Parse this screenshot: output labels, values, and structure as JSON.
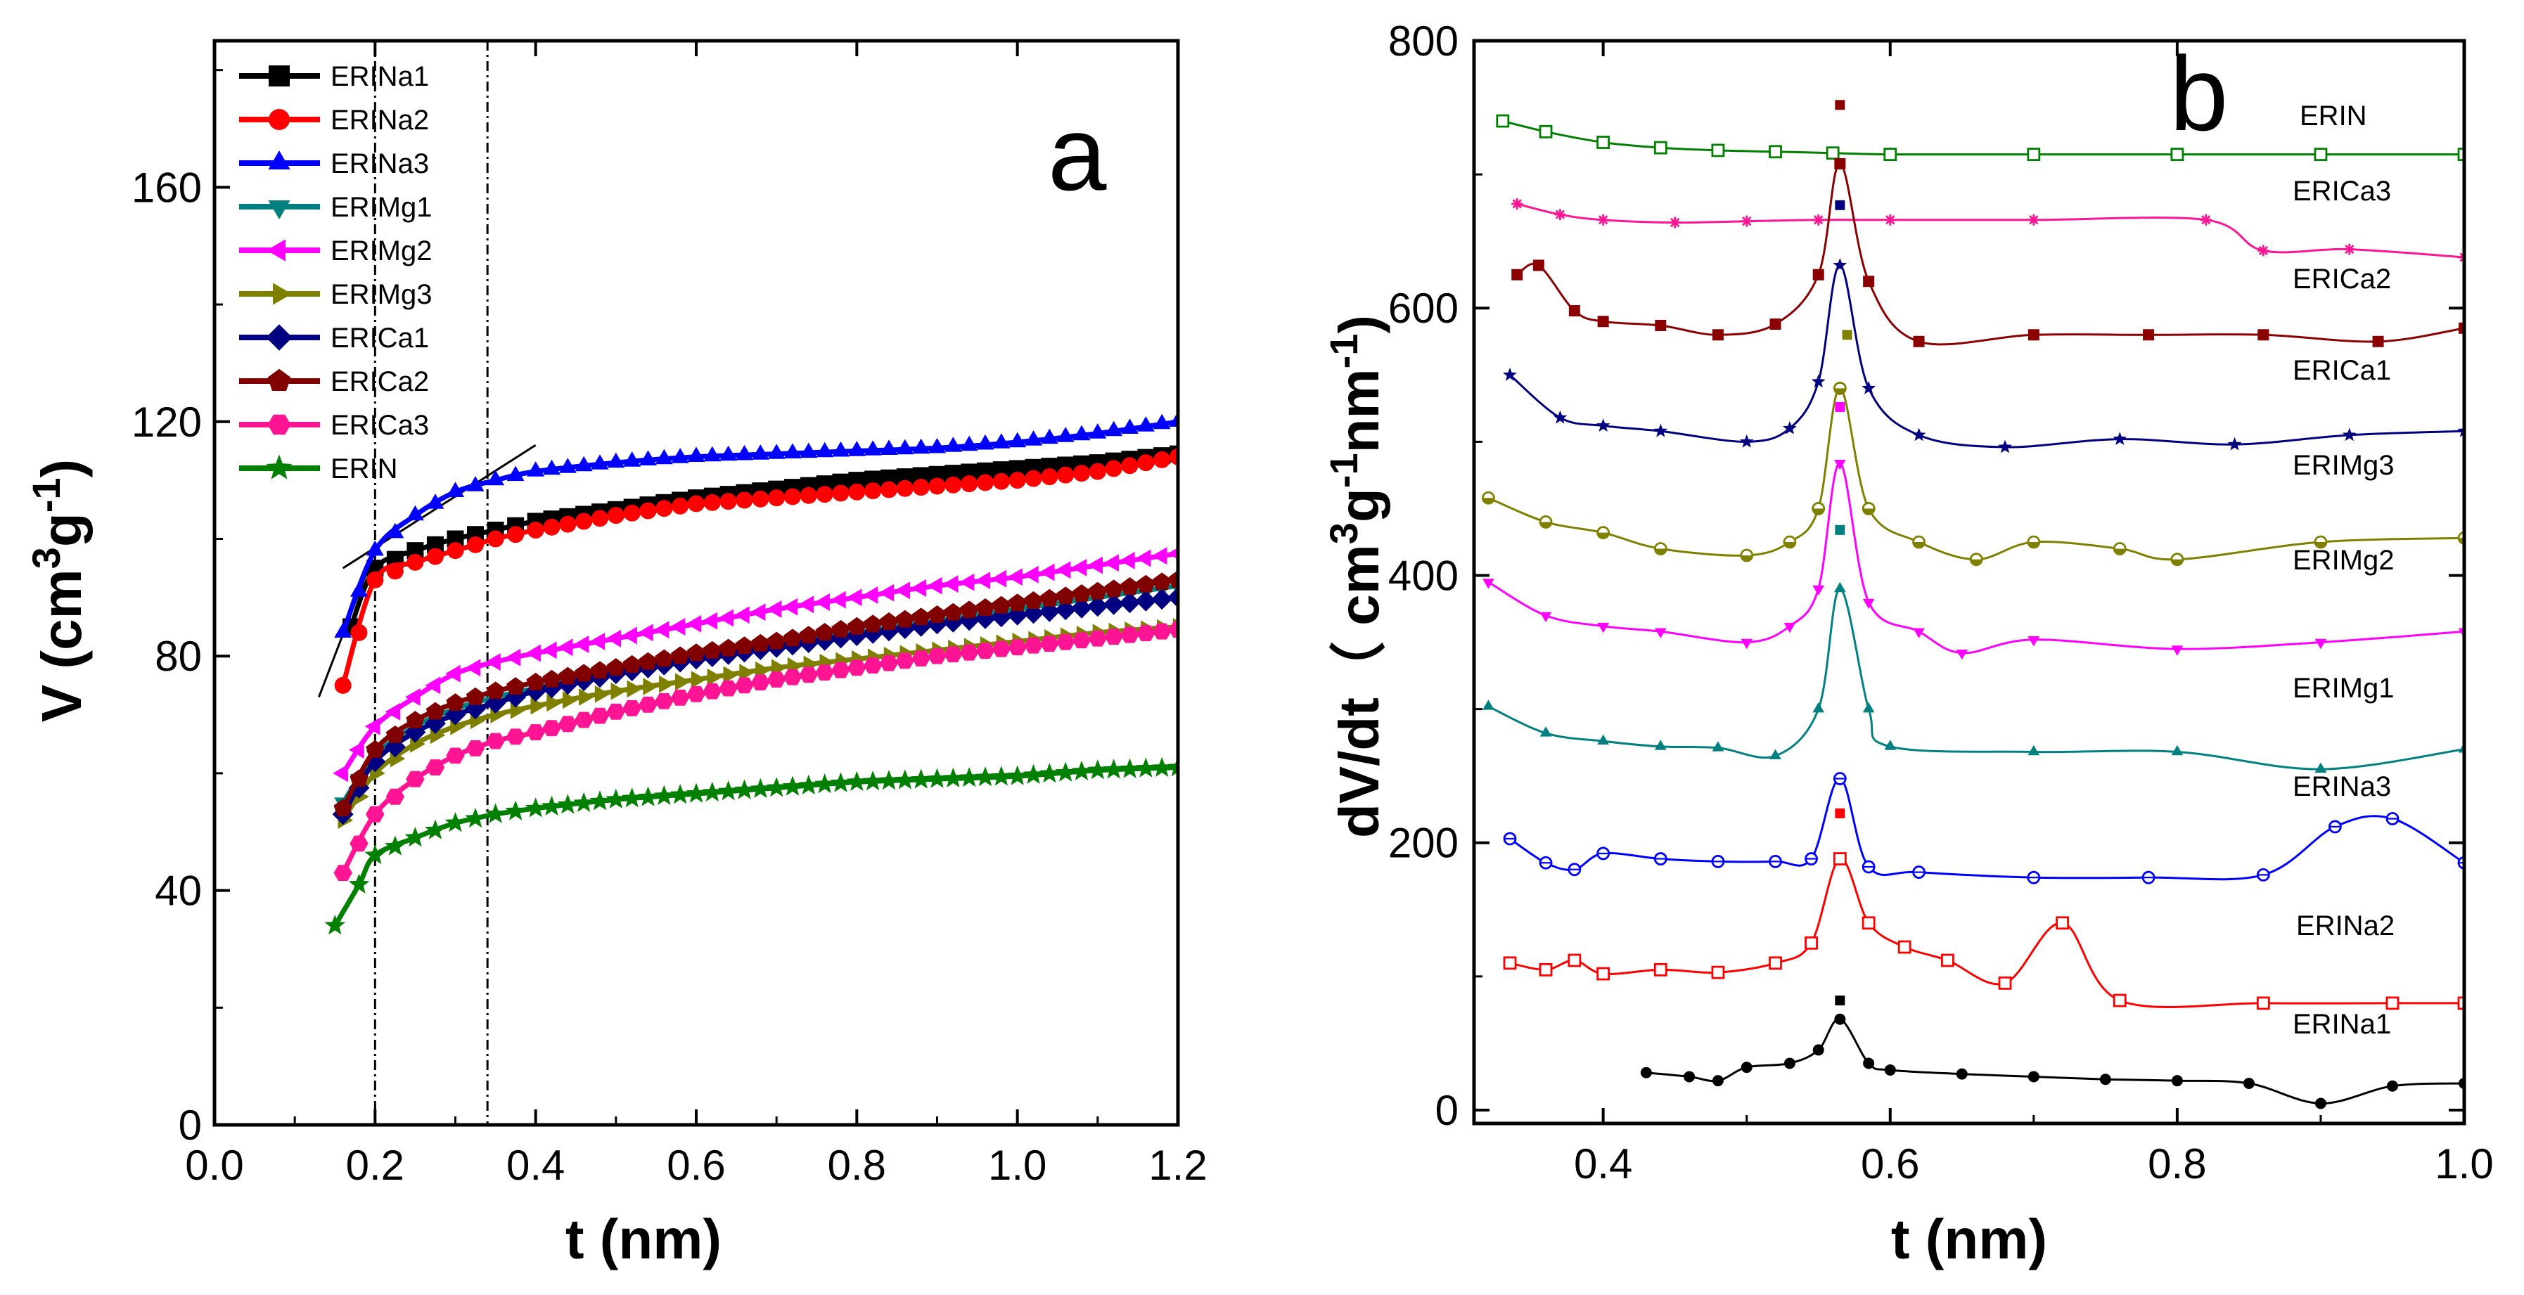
{
  "chart_data": [
    {
      "type": "line",
      "panel": "a",
      "xlabel": "t (nm)",
      "ylabel_parts": [
        "V (cm",
        "3",
        "g",
        "-1",
        ")"
      ],
      "xlim": [
        0.0,
        1.2
      ],
      "ylim": [
        0,
        185
      ],
      "xticks": [
        0.0,
        0.2,
        0.4,
        0.6,
        0.8,
        1.0,
        1.2
      ],
      "xtick_labels": [
        "0.0",
        "0.2",
        "0.4",
        "0.6",
        "0.8",
        "1.0",
        "1.2"
      ],
      "yticks": [
        0,
        40,
        80,
        120,
        160
      ],
      "ytick_labels": [
        "0",
        "40",
        "80",
        "120",
        "160"
      ],
      "legend_position": "top-left",
      "vlines": [
        0.2,
        0.34
      ],
      "tangent_lines": [
        {
          "x": [
            0.13,
            0.2
          ],
          "y": [
            73,
            98
          ]
        },
        {
          "x": [
            0.16,
            0.4
          ],
          "y": [
            95,
            116
          ]
        }
      ],
      "series": [
        {
          "name": "ERINa1",
          "color": "#000000",
          "marker": "square",
          "x": [
            0.17,
            0.2,
            0.25,
            0.3,
            0.35,
            0.4,
            0.5,
            0.6,
            0.7,
            0.8,
            0.9,
            1.0,
            1.1,
            1.2
          ],
          "y": [
            85,
            95,
            98,
            100,
            101.5,
            103,
            105,
            107,
            108.5,
            110,
            111,
            112,
            113,
            114.5
          ]
        },
        {
          "name": "ERINa2",
          "color": "#ff0000",
          "marker": "circle",
          "x": [
            0.16,
            0.2,
            0.25,
            0.3,
            0.35,
            0.4,
            0.5,
            0.6,
            0.7,
            0.8,
            0.9,
            1.0,
            1.1,
            1.2
          ],
          "y": [
            75,
            93,
            96,
            98,
            100,
            101.5,
            104,
            106,
            107,
            108,
            109,
            110,
            111.5,
            114
          ]
        },
        {
          "name": "ERINa3",
          "color": "#0000ff",
          "marker": "triangle-up",
          "x": [
            0.16,
            0.2,
            0.25,
            0.3,
            0.35,
            0.4,
            0.5,
            0.6,
            0.7,
            0.8,
            0.9,
            1.0,
            1.1,
            1.2
          ],
          "y": [
            84,
            98,
            104,
            108,
            110,
            111.5,
            113,
            114,
            114.5,
            115,
            115.5,
            116.5,
            118,
            120
          ]
        },
        {
          "name": "ERIMg1",
          "color": "#008080",
          "marker": "triangle-down",
          "x": [
            0.16,
            0.2,
            0.25,
            0.3,
            0.35,
            0.4,
            0.5,
            0.6,
            0.7,
            0.8,
            0.9,
            1.0,
            1.1,
            1.2
          ],
          "y": [
            55,
            63,
            68,
            71,
            73,
            74.5,
            77,
            79.5,
            82,
            84,
            86,
            88,
            90,
            92
          ]
        },
        {
          "name": "ERIMg2",
          "color": "#ff00ff",
          "marker": "triangle-left",
          "x": [
            0.16,
            0.2,
            0.25,
            0.3,
            0.35,
            0.4,
            0.5,
            0.6,
            0.7,
            0.8,
            0.9,
            1.0,
            1.1,
            1.2
          ],
          "y": [
            60,
            68,
            73,
            77,
            79,
            80.5,
            83,
            85.5,
            88,
            90,
            92,
            93.5,
            95.5,
            97.5
          ]
        },
        {
          "name": "ERIMg3",
          "color": "#808000",
          "marker": "triangle-right",
          "x": [
            0.16,
            0.2,
            0.25,
            0.3,
            0.35,
            0.4,
            0.5,
            0.6,
            0.7,
            0.8,
            0.9,
            1.0,
            1.1,
            1.2
          ],
          "y": [
            52,
            60,
            65,
            68,
            70,
            71.5,
            74,
            76,
            78,
            79.5,
            81,
            82.5,
            84,
            85
          ]
        },
        {
          "name": "ERICa1",
          "color": "#000080",
          "marker": "diamond",
          "x": [
            0.16,
            0.2,
            0.25,
            0.3,
            0.35,
            0.4,
            0.5,
            0.6,
            0.7,
            0.8,
            0.9,
            1.0,
            1.1,
            1.2
          ],
          "y": [
            53,
            62,
            67,
            70,
            72,
            74,
            77,
            79.5,
            81.5,
            83.5,
            85.5,
            87,
            88.5,
            90
          ]
        },
        {
          "name": "ERICa2",
          "color": "#800000",
          "marker": "pentagon",
          "x": [
            0.16,
            0.2,
            0.25,
            0.3,
            0.35,
            0.4,
            0.5,
            0.6,
            0.7,
            0.8,
            0.9,
            1.0,
            1.1,
            1.2
          ],
          "y": [
            54,
            64,
            69,
            72,
            74,
            75.5,
            78,
            80.5,
            82.5,
            85,
            87,
            89,
            91,
            93
          ]
        },
        {
          "name": "ERICa3",
          "color": "#ff1493",
          "marker": "hexagon",
          "x": [
            0.16,
            0.2,
            0.25,
            0.3,
            0.35,
            0.4,
            0.5,
            0.6,
            0.7,
            0.8,
            0.9,
            1.0,
            1.1,
            1.2
          ],
          "y": [
            43,
            53,
            59,
            63,
            65.5,
            67,
            70.5,
            73.5,
            76,
            78,
            80,
            81.5,
            83,
            84.5
          ]
        },
        {
          "name": "ERIN",
          "color": "#008000",
          "marker": "star",
          "x": [
            0.15,
            0.18,
            0.2,
            0.25,
            0.3,
            0.35,
            0.4,
            0.5,
            0.6,
            0.7,
            0.8,
            0.9,
            1.0,
            1.1,
            1.2
          ],
          "y": [
            34,
            41,
            46,
            49,
            51.5,
            53,
            54,
            55.5,
            56.5,
            57.5,
            58.5,
            59,
            59.5,
            60.5,
            61
          ]
        }
      ]
    },
    {
      "type": "line",
      "panel": "b",
      "xlabel": "t (nm)",
      "ylabel_parts": [
        "dV/dt（ cm",
        "3",
        "g",
        "-1",
        "nm",
        "-1",
        ")"
      ],
      "xlim": [
        0.31,
        1.0
      ],
      "ylim": [
        -10,
        800
      ],
      "xticks": [
        0.4,
        0.6,
        0.8,
        1.0
      ],
      "xtick_labels": [
        "0.4",
        "0.6",
        "0.8",
        "1.0"
      ],
      "yticks": [
        0,
        200,
        400,
        600,
        800
      ],
      "ytick_labels": [
        "0",
        "200",
        "400",
        "600",
        "800"
      ],
      "series": [
        {
          "name": "ERIN",
          "color": "#008000",
          "marker": "square-open",
          "x": [
            0.33,
            0.36,
            0.4,
            0.44,
            0.48,
            0.52,
            0.56,
            0.6,
            0.7,
            0.8,
            0.9,
            1.0
          ],
          "y": [
            740,
            732,
            724,
            720,
            718,
            717,
            716,
            715,
            715,
            715,
            715,
            715
          ]
        },
        {
          "name": "ERICa3",
          "color": "#ff1493",
          "marker": "asterisk",
          "x": [
            0.34,
            0.37,
            0.4,
            0.45,
            0.5,
            0.55,
            0.6,
            0.7,
            0.82,
            0.86,
            0.92,
            1.0
          ],
          "y": [
            678,
            670,
            666,
            664,
            665,
            666,
            666,
            666,
            666,
            643,
            644,
            638
          ]
        },
        {
          "name": "ERICa2",
          "color": "#8b0000",
          "marker": "square",
          "x": [
            0.34,
            0.355,
            0.38,
            0.4,
            0.44,
            0.48,
            0.52,
            0.55,
            0.565,
            0.585,
            0.62,
            0.7,
            0.78,
            0.86,
            0.94,
            1.0
          ],
          "y": [
            625,
            632,
            598,
            590,
            587,
            580,
            588,
            625,
            708,
            620,
            575,
            580,
            580,
            580,
            575,
            585
          ]
        },
        {
          "name": "ERICa1",
          "color": "#000080",
          "marker": "star",
          "x": [
            0.335,
            0.37,
            0.4,
            0.44,
            0.5,
            0.53,
            0.55,
            0.565,
            0.585,
            0.62,
            0.68,
            0.76,
            0.84,
            0.92,
            1.0
          ],
          "y": [
            550,
            518,
            512,
            508,
            500,
            510,
            545,
            632,
            540,
            505,
            496,
            502,
            498,
            505,
            508
          ]
        },
        {
          "name": "ERIMg3",
          "color": "#808000",
          "marker": "circle-half",
          "x": [
            0.32,
            0.36,
            0.4,
            0.44,
            0.5,
            0.53,
            0.55,
            0.565,
            0.585,
            0.62,
            0.66,
            0.7,
            0.76,
            0.8,
            0.9,
            1.0
          ],
          "y": [
            458,
            440,
            432,
            420,
            415,
            425,
            450,
            540,
            450,
            425,
            412,
            425,
            420,
            412,
            425,
            428
          ]
        },
        {
          "name": "ERIMg2",
          "color": "#ff00ff",
          "marker": "triangle-down",
          "x": [
            0.32,
            0.36,
            0.4,
            0.44,
            0.5,
            0.53,
            0.55,
            0.565,
            0.585,
            0.62,
            0.65,
            0.7,
            0.8,
            0.9,
            1.0
          ],
          "y": [
            395,
            370,
            362,
            358,
            350,
            362,
            390,
            484,
            380,
            358,
            342,
            352,
            345,
            350,
            358
          ]
        },
        {
          "name": "ERIMg1",
          "color": "#008080",
          "marker": "triangle-up",
          "x": [
            0.32,
            0.36,
            0.4,
            0.44,
            0.48,
            0.52,
            0.55,
            0.565,
            0.585,
            0.6,
            0.7,
            0.8,
            0.9,
            1.0
          ],
          "y": [
            302,
            282,
            276,
            272,
            271,
            265,
            300,
            390,
            300,
            272,
            268,
            268,
            255,
            270
          ]
        },
        {
          "name": "ERINa3",
          "color": "#0000ff",
          "marker": "circle-open",
          "x": [
            0.335,
            0.36,
            0.38,
            0.4,
            0.44,
            0.48,
            0.52,
            0.545,
            0.565,
            0.585,
            0.62,
            0.7,
            0.78,
            0.86,
            0.91,
            0.95,
            1.0
          ],
          "y": [
            203,
            185,
            180,
            192,
            188,
            186,
            186,
            188,
            248,
            182,
            178,
            174,
            174,
            176,
            212,
            218,
            185
          ]
        },
        {
          "name": "ERINa2",
          "color": "#ff0000",
          "marker": "square-open",
          "x": [
            0.335,
            0.36,
            0.38,
            0.4,
            0.44,
            0.48,
            0.52,
            0.545,
            0.565,
            0.585,
            0.61,
            0.64,
            0.68,
            0.72,
            0.76,
            0.86,
            0.95,
            1.0
          ],
          "y": [
            110,
            105,
            112,
            102,
            105,
            103,
            110,
            125,
            188,
            140,
            122,
            112,
            95,
            140,
            82,
            80,
            80,
            80
          ]
        },
        {
          "name": "ERINa1",
          "color": "#000000",
          "marker": "circle-solid",
          "x": [
            0.43,
            0.46,
            0.48,
            0.5,
            0.53,
            0.55,
            0.565,
            0.585,
            0.6,
            0.65,
            0.7,
            0.75,
            0.8,
            0.85,
            0.9,
            0.95,
            1.0
          ],
          "y": [
            28,
            25,
            22,
            32,
            35,
            45,
            68,
            35,
            30,
            27,
            25,
            23,
            22,
            20,
            5,
            18,
            20
          ]
        }
      ],
      "outlier_points": [
        {
          "x": 0.565,
          "y": 752,
          "color": "#8b0000"
        },
        {
          "x": 0.565,
          "y": 677,
          "color": "#000080"
        },
        {
          "x": 0.57,
          "y": 580,
          "color": "#808000"
        },
        {
          "x": 0.565,
          "y": 526,
          "color": "#ff00ff"
        },
        {
          "x": 0.565,
          "y": 434,
          "color": "#008080"
        },
        {
          "x": 0.565,
          "y": 222,
          "color": "#ff0000"
        },
        {
          "x": 0.565,
          "y": 82,
          "color": "#000000"
        }
      ],
      "curve_labels": [
        "ERIN",
        "ERICa3",
        "ERICa2",
        "ERICa1",
        "ERIMg3",
        "ERIMg2",
        "ERIMg1",
        "ERINa3",
        "ERINa2",
        "ERINa1"
      ]
    }
  ],
  "panel_letters": {
    "a": "a",
    "b": "b"
  }
}
